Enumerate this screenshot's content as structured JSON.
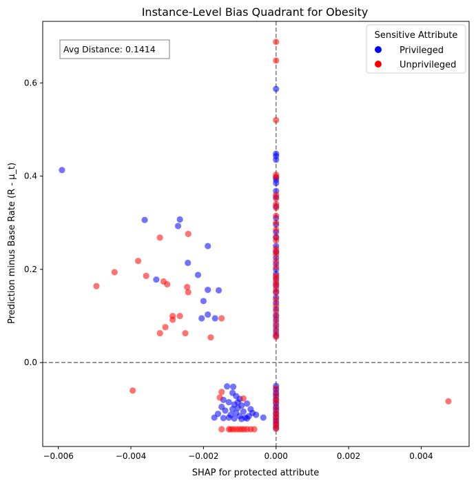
{
  "chart_data": {
    "type": "scatter",
    "title": "Instance-Level Bias Quadrant for Obesity",
    "xlabel": "SHAP for protected attribute",
    "ylabel": "Prediction minus Base Rate (R - μ_t)",
    "xlim": [
      -0.00643,
      0.00532
    ],
    "ylim": [
      -0.18,
      0.732
    ],
    "xticks": [
      -0.006,
      -0.004,
      -0.002,
      0.0,
      0.002,
      0.004
    ],
    "xtick_labels": [
      "−0.006",
      "−0.004",
      "−0.002",
      "0.000",
      "0.002",
      "0.004"
    ],
    "yticks": [
      0.0,
      0.2,
      0.4,
      0.6
    ],
    "ytick_labels": [
      "0.0",
      "0.2",
      "0.4",
      "0.6"
    ],
    "grid": false,
    "reference_lines": {
      "x": 0.0,
      "y": 0.0,
      "style": "dashed"
    },
    "annotation": "Avg Distance: 0.1414",
    "legend": {
      "title": "Sensitive Attribute",
      "position": "top-right"
    },
    "series": [
      {
        "name": "Privileged",
        "color": "#0000ff",
        "points": [
          [
            -0.0059,
            0.413
          ],
          [
            -0.00362,
            0.306
          ],
          [
            -0.00265,
            0.307
          ],
          [
            -0.0027,
            0.293
          ],
          [
            -0.0033,
            0.178
          ],
          [
            -0.00243,
            0.214
          ],
          [
            -0.00188,
            0.25
          ],
          [
            -0.00215,
            0.188
          ],
          [
            -0.00188,
            0.156
          ],
          [
            -0.00158,
            0.155
          ],
          [
            -0.002,
            0.132
          ],
          [
            -0.00188,
            0.103
          ],
          [
            -0.00205,
            0.095
          ],
          [
            -0.00168,
            0.095
          ],
          [
            -0.00135,
            -0.051
          ],
          [
            -0.00118,
            -0.052
          ],
          [
            -0.0012,
            -0.065
          ],
          [
            -0.0011,
            -0.072
          ],
          [
            -0.00145,
            -0.08
          ],
          [
            -0.001,
            -0.078
          ],
          [
            -0.0013,
            -0.085
          ],
          [
            -0.00115,
            -0.09
          ],
          [
            -0.00095,
            -0.092
          ],
          [
            -0.00105,
            -0.097
          ],
          [
            -0.0012,
            -0.1
          ],
          [
            -0.0008,
            -0.088
          ],
          [
            -0.0014,
            -0.103
          ],
          [
            -0.0009,
            -0.105
          ],
          [
            -0.0007,
            -0.1
          ],
          [
            -0.0011,
            -0.108
          ],
          [
            -0.0016,
            -0.11
          ],
          [
            -0.00125,
            -0.112
          ],
          [
            -0.001,
            -0.115
          ],
          [
            -0.00085,
            -0.118
          ],
          [
            -0.0013,
            -0.118
          ],
          [
            -0.00075,
            -0.115
          ],
          [
            -0.00115,
            -0.12
          ],
          [
            -0.00095,
            -0.121
          ],
          [
            -0.00055,
            -0.112
          ],
          [
            -0.00035,
            -0.118
          ],
          [
            -0.0015,
            -0.095
          ],
          [
            -0.00065,
            -0.108
          ],
          [
            -0.00105,
            -0.085
          ],
          [
            -0.0008,
            -0.12
          ],
          [
            -0.0017,
            -0.118
          ],
          [
            -0.00145,
            -0.119
          ],
          [
            0.0,
            0.587
          ],
          [
            0.0,
            0.448
          ],
          [
            0.0,
            0.443
          ],
          [
            0.0,
            0.435
          ],
          [
            0.0,
            0.397
          ],
          [
            0.0,
            0.392
          ],
          [
            0.0,
            0.385
          ],
          [
            0.0,
            0.368
          ],
          [
            0.0,
            0.355
          ],
          [
            0.0,
            0.335
          ],
          [
            0.0,
            0.31
          ],
          [
            0.0,
            0.296
          ],
          [
            0.0,
            0.28
          ],
          [
            0.0,
            0.268
          ],
          [
            0.0,
            0.25
          ],
          [
            0.0,
            0.238
          ],
          [
            0.0,
            0.225
          ],
          [
            0.0,
            0.212
          ],
          [
            0.0,
            0.2
          ],
          [
            0.0,
            0.19
          ],
          [
            0.0,
            0.178
          ],
          [
            0.0,
            0.165
          ],
          [
            0.0,
            0.152
          ],
          [
            0.0,
            0.14
          ],
          [
            0.0,
            0.128
          ],
          [
            0.0,
            0.115
          ],
          [
            0.0,
            0.102
          ],
          [
            0.0,
            0.092
          ],
          [
            0.0,
            0.08
          ],
          [
            0.0,
            0.068
          ],
          [
            0.0,
            0.058
          ],
          [
            0.0,
            -0.05
          ],
          [
            0.0,
            -0.058
          ],
          [
            0.0,
            -0.065
          ],
          [
            0.0,
            -0.072
          ],
          [
            0.0,
            -0.08
          ],
          [
            0.0,
            -0.088
          ],
          [
            0.0,
            -0.095
          ],
          [
            0.0,
            -0.102
          ],
          [
            0.0,
            -0.11
          ],
          [
            0.0,
            -0.118
          ],
          [
            0.0,
            -0.125
          ],
          [
            0.0,
            -0.132
          ],
          [
            0.0,
            -0.14
          ]
        ]
      },
      {
        "name": "Unprivileged",
        "color": "#ff0000",
        "points": [
          [
            -0.00495,
            0.164
          ],
          [
            -0.00445,
            0.194
          ],
          [
            -0.0038,
            0.218
          ],
          [
            -0.00358,
            0.186
          ],
          [
            -0.0032,
            0.268
          ],
          [
            -0.00242,
            0.276
          ],
          [
            -0.0031,
            0.174
          ],
          [
            -0.003,
            0.168
          ],
          [
            -0.00245,
            0.162
          ],
          [
            -0.00242,
            0.151
          ],
          [
            -0.00285,
            0.1
          ],
          [
            -0.00285,
            0.092
          ],
          [
            -0.00265,
            0.1
          ],
          [
            -0.00305,
            0.076
          ],
          [
            -0.0032,
            0.063
          ],
          [
            -0.0025,
            0.063
          ],
          [
            -0.0018,
            0.054
          ],
          [
            -0.0015,
            0.095
          ],
          [
            -0.00395,
            -0.06
          ],
          [
            0.00475,
            -0.083
          ],
          [
            -0.0015,
            -0.063
          ],
          [
            -0.00155,
            -0.075
          ],
          [
            -0.0009,
            -0.077
          ],
          [
            -0.0015,
            -0.143
          ],
          [
            -0.00125,
            -0.143
          ],
          [
            -0.00118,
            -0.143
          ],
          [
            -0.0011,
            -0.143
          ],
          [
            -0.00102,
            -0.143
          ],
          [
            -0.00095,
            -0.143
          ],
          [
            -0.00088,
            -0.143
          ],
          [
            -0.0008,
            -0.143
          ],
          [
            -0.0007,
            -0.143
          ],
          [
            -0.0006,
            -0.143
          ],
          [
            -0.0013,
            -0.143
          ],
          [
            0.0,
            0.688
          ],
          [
            0.0,
            0.648
          ],
          [
            0.0,
            0.52
          ],
          [
            0.0,
            0.403
          ],
          [
            0.0,
            0.398
          ],
          [
            0.0,
            0.36
          ],
          [
            0.0,
            0.352
          ],
          [
            0.0,
            0.34
          ],
          [
            0.0,
            0.332
          ],
          [
            0.0,
            0.315
          ],
          [
            0.0,
            0.3
          ],
          [
            0.0,
            0.285
          ],
          [
            0.0,
            0.27
          ],
          [
            0.0,
            0.262
          ],
          [
            0.0,
            0.244
          ],
          [
            0.0,
            0.237
          ],
          [
            0.0,
            0.232
          ],
          [
            0.0,
            0.218
          ],
          [
            0.0,
            0.205
          ],
          [
            0.0,
            0.186
          ],
          [
            0.0,
            0.182
          ],
          [
            0.0,
            0.172
          ],
          [
            0.0,
            0.168
          ],
          [
            0.0,
            0.158
          ],
          [
            0.0,
            0.15
          ],
          [
            0.0,
            0.135
          ],
          [
            0.0,
            0.122
          ],
          [
            0.0,
            0.11
          ],
          [
            0.0,
            0.098
          ],
          [
            0.0,
            0.086
          ],
          [
            0.0,
            0.074
          ],
          [
            0.0,
            0.062
          ],
          [
            0.0,
            0.055
          ],
          [
            0.0,
            -0.055
          ],
          [
            0.0,
            -0.068
          ],
          [
            0.0,
            -0.078
          ],
          [
            0.0,
            -0.085
          ],
          [
            0.0,
            -0.098
          ],
          [
            0.0,
            -0.108
          ],
          [
            0.0,
            -0.115
          ],
          [
            0.0,
            -0.122
          ],
          [
            0.0,
            -0.13
          ],
          [
            0.0,
            -0.136
          ],
          [
            0.0,
            -0.142
          ]
        ]
      }
    ]
  }
}
